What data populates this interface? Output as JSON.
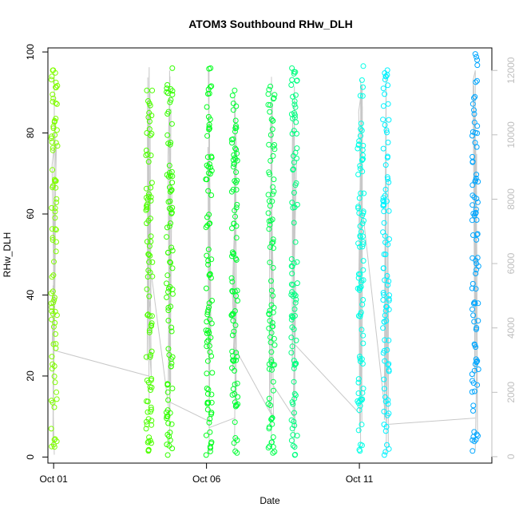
{
  "chart_data": {
    "type": "scatter",
    "title": "ATOM3 Southbound RHw_DLH",
    "xlabel": "Date",
    "ylabel": "RHw_DLH",
    "x_ticks": [
      "Oct 01",
      "Oct 06",
      "Oct 11"
    ],
    "y_ticks": [
      "0",
      "20",
      "40",
      "60",
      "80",
      "100"
    ],
    "y_right_ticks": [
      "0",
      "2000",
      "4000",
      "6000",
      "8000",
      "10000",
      "12000"
    ],
    "xlim": [
      "Sep 30 19:30",
      "Oct 15 08:00"
    ],
    "ylim": [
      -1.5,
      101
    ],
    "y_right_lim": [
      -200,
      12700
    ],
    "grid": false,
    "legend": "none",
    "secondary_line_color": "#c8c8c8",
    "series": [
      {
        "x": "Oct 01 00:30",
        "ymin": 2.5,
        "ymax": 95.5,
        "color": "#80ff00",
        "seed": 1
      },
      {
        "x": "Oct 04 03:00",
        "ymin": 1.5,
        "ymax": 90.5,
        "color": "#4dff00",
        "seed": 2
      },
      {
        "x": "Oct 04 19:00",
        "ymin": 0.5,
        "ymax": 96,
        "color": "#33ff00",
        "seed": 3
      },
      {
        "x": "Oct 06 02:00",
        "ymin": 0.5,
        "ymax": 96,
        "color": "#00ff1a",
        "seed": 4
      },
      {
        "x": "Oct 06 22:00",
        "ymin": 1,
        "ymax": 90.5,
        "color": "#00ff33",
        "seed": 5
      },
      {
        "x": "Oct 08 03:00",
        "ymin": 1,
        "ymax": 91.5,
        "color": "#00ff4d",
        "seed": 6
      },
      {
        "x": "Oct 08 21:00",
        "ymin": 0.5,
        "ymax": 96,
        "color": "#00ff80",
        "seed": 7
      },
      {
        "x": "Oct 11 01:00",
        "ymin": 1.5,
        "ymax": 96.5,
        "color": "#00ffe6",
        "seed": 8
      },
      {
        "x": "Oct 11 21:00",
        "ymin": 0.5,
        "ymax": 95.5,
        "color": "#00f2ff",
        "seed": 9
      },
      {
        "x": "Oct 14 19:00",
        "ymin": 1.5,
        "ymax": 99.5,
        "color": "#00a6ff",
        "seed": 10
      }
    ],
    "altitude_line": [
      {
        "x": "Oct 01 00:30",
        "alt_min": 60,
        "alt_max": 11900,
        "end": 3300
      },
      {
        "x": "Oct 04 03:00",
        "alt_min": 1500,
        "alt_max": 12100,
        "end": 6200
      },
      {
        "x": "Oct 04 19:00",
        "alt_min": 300,
        "alt_max": 12000,
        "end": 1700
      },
      {
        "x": "Oct 06 02:00",
        "alt_min": 100,
        "alt_max": 12000,
        "end": 900
      },
      {
        "x": "Oct 06 22:00",
        "alt_min": 200,
        "alt_max": 11200,
        "end": 3400
      },
      {
        "x": "Oct 08 03:00",
        "alt_min": 300,
        "alt_max": 11800,
        "end": 2300
      },
      {
        "x": "Oct 08 21:00",
        "alt_min": 200,
        "alt_max": 11500,
        "end": 3500
      },
      {
        "x": "Oct 11 01:00",
        "alt_min": 300,
        "alt_max": 11700,
        "end": 8200
      },
      {
        "x": "Oct 11 21:00",
        "alt_min": 100,
        "alt_max": 12000,
        "end": 1000
      },
      {
        "x": "Oct 14 19:00",
        "alt_min": 200,
        "alt_max": 12000,
        "end": 2600
      }
    ]
  }
}
